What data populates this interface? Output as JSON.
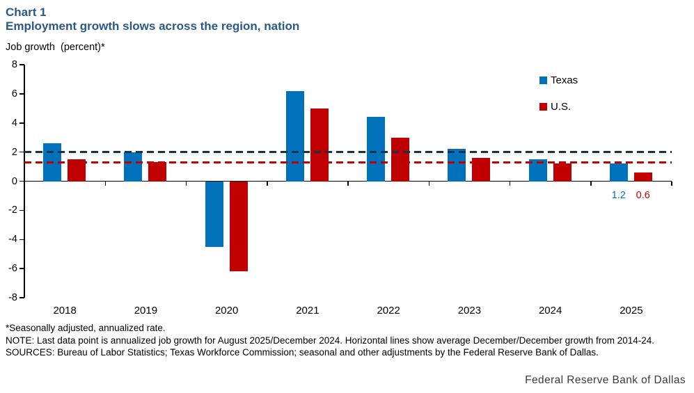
{
  "header": {
    "chart_number": "Chart 1",
    "title": "Employment growth slows across the region, nation"
  },
  "chart_data": {
    "type": "bar",
    "title": "Chart 1",
    "subtitle": "Employment growth slows across the region, nation",
    "ylabel": "Job growth  (percent)*",
    "categories": [
      "2018",
      "2019",
      "2020",
      "2021",
      "2022",
      "2023",
      "2024",
      "2025"
    ],
    "series": [
      {
        "name": "Texas",
        "color": "#0072BC",
        "values": [
          2.6,
          2.0,
          -4.5,
          6.2,
          4.4,
          2.2,
          1.5,
          1.2
        ]
      },
      {
        "name": "U.S.",
        "color": "#C00000",
        "values": [
          1.5,
          1.3,
          -6.2,
          5.0,
          3.0,
          1.6,
          1.2,
          0.6
        ]
      }
    ],
    "reference_lines": [
      {
        "name": "Texas average December/December growth 2014-24",
        "value": 2.0,
        "color": "#17324A",
        "style": "dashed"
      },
      {
        "name": "U.S. average December/December growth 2014-24",
        "value": 1.3,
        "color": "#C00000",
        "style": "dashed"
      }
    ],
    "point_labels": [
      {
        "category": "2025",
        "series": 0,
        "text": "1.2",
        "color": "#0072BC"
      },
      {
        "category": "2025",
        "series": 1,
        "text": "0.6",
        "color": "#C00000"
      }
    ],
    "ylim": [
      -8,
      8
    ],
    "ytick_step": 2,
    "grid": false,
    "legend_position": "top-right-inside"
  },
  "legend": {
    "items": [
      {
        "label": "Texas",
        "color": "#0072BC"
      },
      {
        "label": "U.S.",
        "color": "#C00000"
      }
    ]
  },
  "footnotes": {
    "asterisk": "*Seasonally adjusted, annualized rate.",
    "note": "NOTE: Last data point is annualized job growth for August 2025/December 2024. Horizontal lines show average December/December growth from 2014-24.",
    "sources": "SOURCES: Bureau of Labor Statistics; Texas Workforce Commission; seasonal and other adjustments by the Federal Reserve Bank of Dallas."
  },
  "footer": {
    "branding": "Federal Reserve Bank of Dallas"
  }
}
